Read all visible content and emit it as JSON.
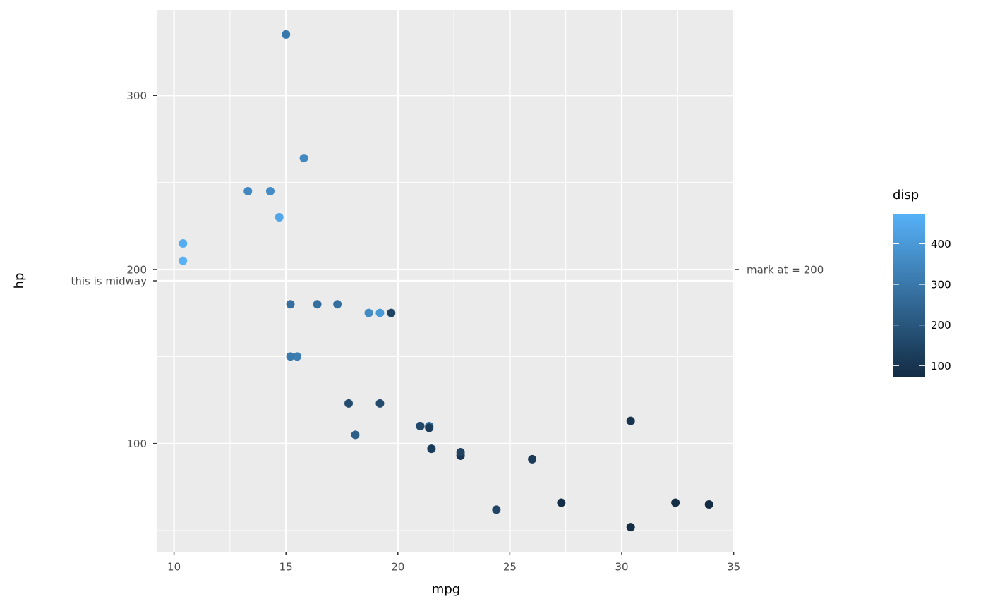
{
  "chart_data": {
    "type": "scatter",
    "x_label": "mpg",
    "y_label": "hp",
    "x": [
      21,
      21,
      22.8,
      21.4,
      18.7,
      18.1,
      14.3,
      24.4,
      22.8,
      19.2,
      17.8,
      16.4,
      17.3,
      15.2,
      10.4,
      10.4,
      14.7,
      32.4,
      30.4,
      33.9,
      21.5,
      15.5,
      15.2,
      13.3,
      19.2,
      27.3,
      26,
      30.4,
      15.8,
      19.7,
      15,
      21.4
    ],
    "values": [
      110,
      110,
      93,
      110,
      175,
      105,
      245,
      62,
      95,
      123,
      123,
      180,
      180,
      180,
      205,
      215,
      230,
      66,
      52,
      65,
      97,
      150,
      150,
      245,
      175,
      66,
      91,
      113,
      264,
      175,
      335,
      109
    ],
    "color_values": [
      160,
      160,
      108,
      258,
      360,
      225,
      360,
      146.7,
      140.8,
      167.6,
      167.6,
      275.8,
      275.8,
      275.8,
      472,
      460,
      440,
      78.7,
      75.7,
      71.1,
      120.1,
      318,
      304,
      350,
      400,
      79,
      120.3,
      95.1,
      351,
      145,
      301,
      121
    ],
    "color_legend": {
      "title": "disp",
      "lim": [
        71.1,
        472
      ],
      "ticks": [
        100,
        200,
        300,
        400
      ],
      "low": "#132B43",
      "high": "#56B1F7"
    },
    "xlim": [
      9.225,
      35.075
    ],
    "xticks": [
      10,
      15,
      20,
      25,
      30,
      35
    ],
    "xminor": [
      12.5,
      17.5,
      22.5,
      27.5,
      32.5
    ],
    "ylim": [
      37.85,
      349.15
    ],
    "yticks": [
      100,
      {
        "value": 193.5,
        "label": "this is midway"
      },
      200,
      300
    ],
    "yminor": [
      50,
      150,
      250
    ],
    "y2lim": [
      37.85,
      349.15
    ],
    "y2ticks": [
      {
        "value": 200,
        "label": "mark at = 200"
      }
    ],
    "grid": true
  }
}
